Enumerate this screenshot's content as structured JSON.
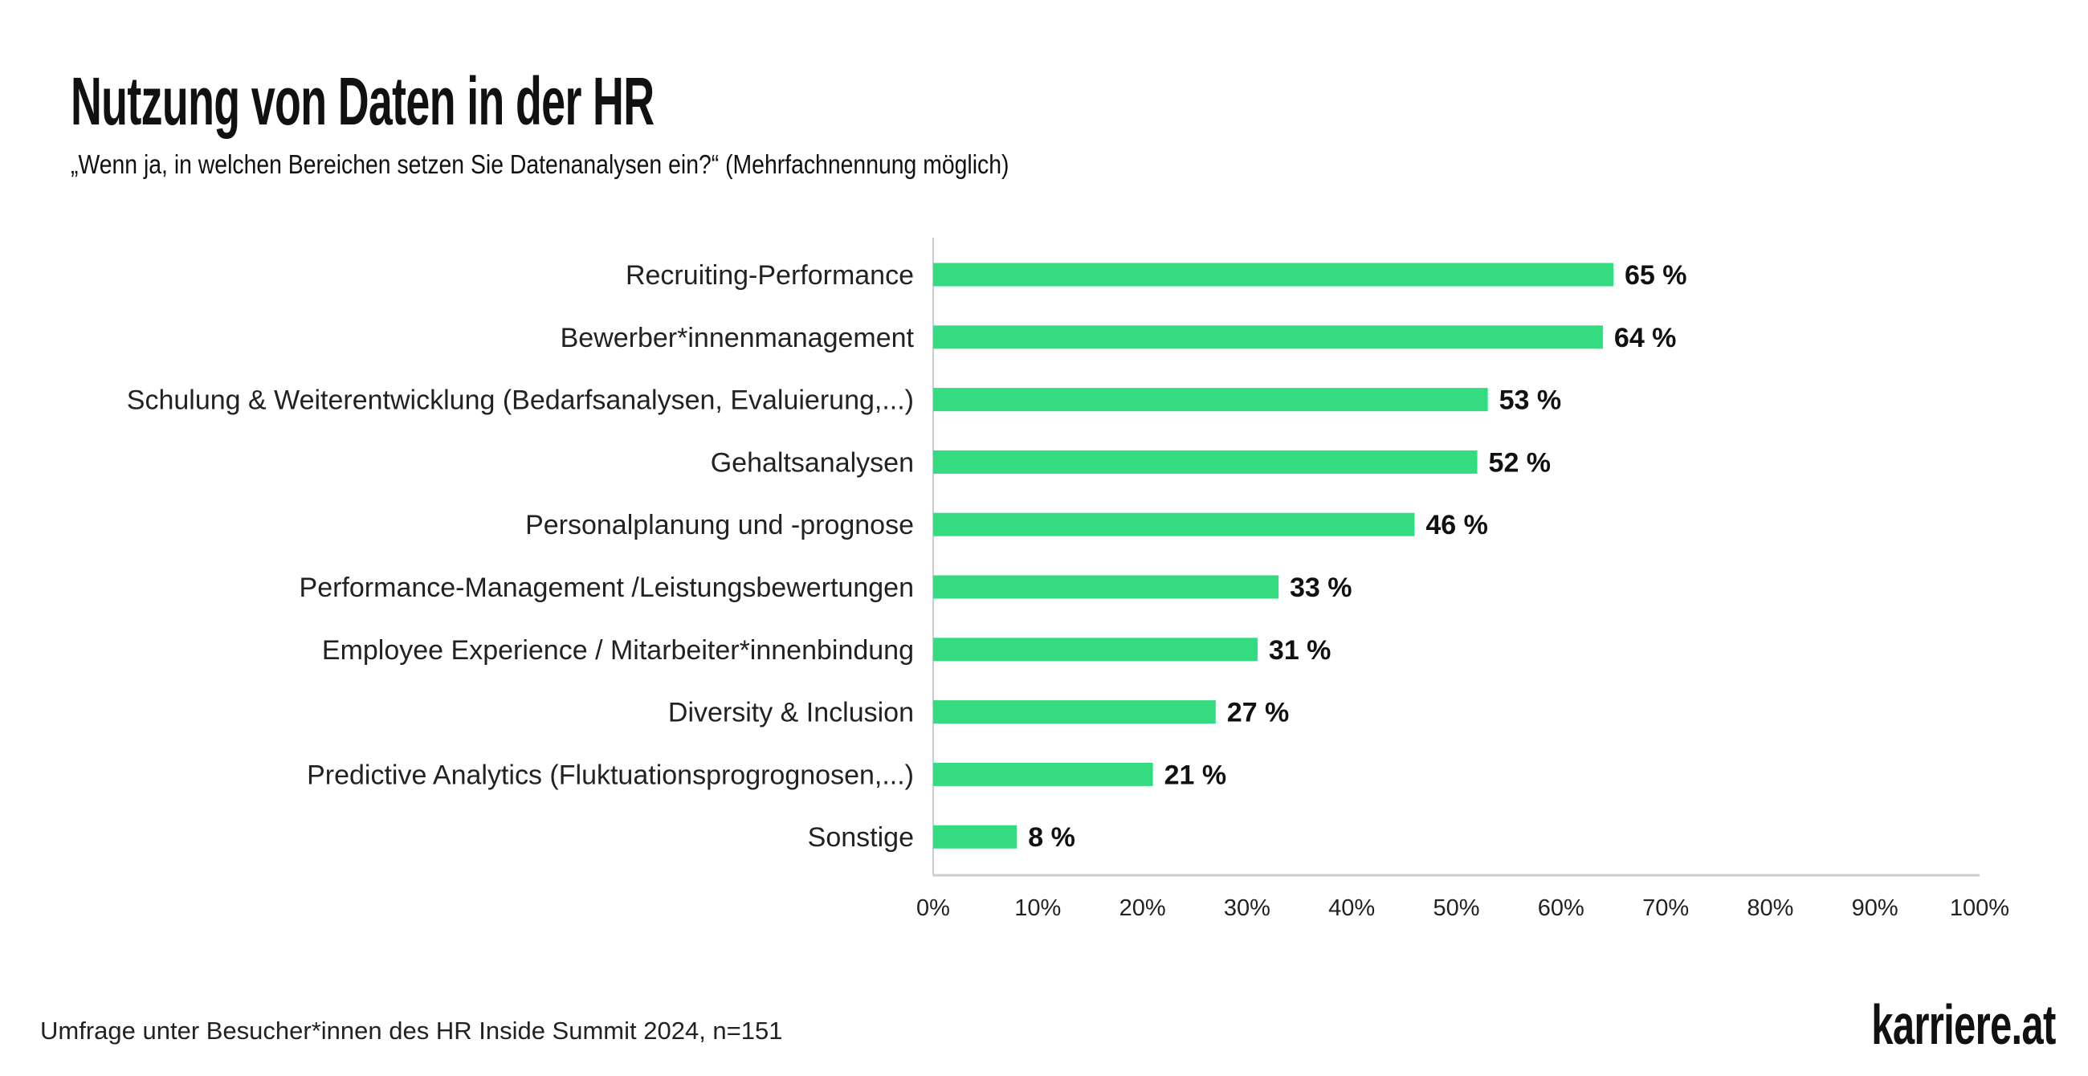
{
  "title": "Nutzung von Daten in der HR",
  "subtitle": "„Wenn ja, in welchen Bereichen setzen Sie Datenanalysen ein?“ (Mehrfachnennung möglich)",
  "footer": "Umfrage unter Besucher*innen des HR Inside Summit 2024, n=151",
  "logo": "karriere.at",
  "colors": {
    "bar": "#35DB80",
    "axis": "#cccccc"
  },
  "chart_data": {
    "type": "bar",
    "orientation": "horizontal",
    "categories": [
      "Recruiting-Performance",
      "Bewerber*innenmanagement",
      "Schulung & Weiterentwicklung (Bedarfsanalysen, Evaluierung,...)",
      "Gehaltsanalysen",
      "Personalplanung und -prognose",
      "Performance-Management /Leistungsbewertungen",
      "Employee Experience / Mitarbeiter*innenbindung",
      "Diversity & Inclusion",
      "Predictive Analytics (Fluktuationsprogrognosen,...)",
      "Sonstige"
    ],
    "values": [
      65,
      64,
      53,
      52,
      46,
      33,
      31,
      27,
      21,
      8
    ],
    "data_labels": [
      "65 %",
      "64 %",
      "53 %",
      "52 %",
      "46 %",
      "33 %",
      "31 %",
      "27 %",
      "21 %",
      "8 %"
    ],
    "xlim": [
      0,
      100
    ],
    "xticks": [
      "0%",
      "10%",
      "20%",
      "30%",
      "40%",
      "50%",
      "60%",
      "70%",
      "80%",
      "90%",
      "100%"
    ],
    "grid": false,
    "legend": "none"
  }
}
